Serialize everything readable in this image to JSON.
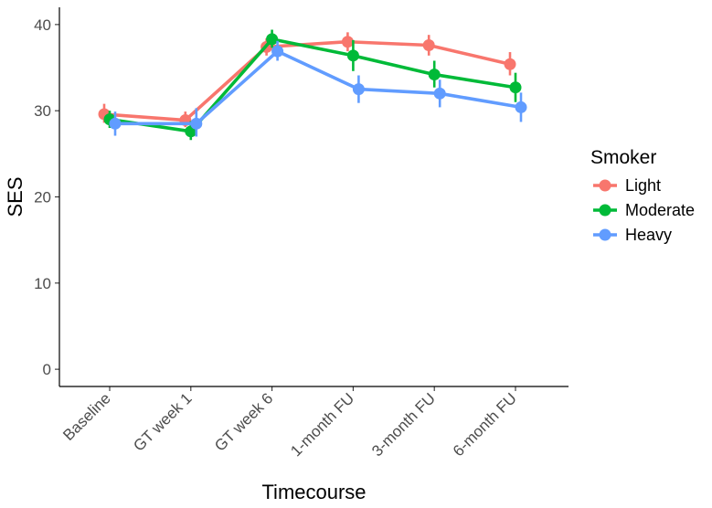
{
  "chart_data": {
    "type": "line",
    "xlabel": "Timecourse",
    "ylabel": "SES",
    "categories": [
      "Baseline",
      "GT week 1",
      "GT week 6",
      "1-month FU",
      "3-month FU",
      "6-month FU"
    ],
    "ylim": [
      -2,
      42
    ],
    "yticks": [
      0,
      10,
      20,
      30,
      40
    ],
    "grid": false,
    "legend": {
      "title": "Smoker",
      "position": "right"
    },
    "series": [
      {
        "name": "Light",
        "color": "#F8766D",
        "values": [
          29.6,
          28.9,
          37.4,
          38.0,
          37.6,
          35.4
        ],
        "err_low": [
          28.6,
          28.1,
          36.4,
          36.9,
          36.4,
          34.1
        ],
        "err_high": [
          30.8,
          29.9,
          38.4,
          39.1,
          38.8,
          36.8
        ]
      },
      {
        "name": "Moderate",
        "color": "#00BA38",
        "values": [
          29.0,
          27.6,
          38.3,
          36.4,
          34.2,
          32.7
        ],
        "err_low": [
          28.0,
          26.6,
          37.3,
          34.6,
          32.7,
          31.0
        ],
        "err_high": [
          30.0,
          28.8,
          39.4,
          38.2,
          35.8,
          34.4
        ]
      },
      {
        "name": "Heavy",
        "color": "#619CFF",
        "values": [
          28.5,
          28.5,
          36.9,
          32.5,
          32.0,
          30.4
        ],
        "err_low": [
          27.1,
          27.0,
          35.8,
          30.9,
          30.4,
          28.7
        ],
        "err_high": [
          29.9,
          30.3,
          38.1,
          34.1,
          33.6,
          32.1
        ]
      }
    ]
  }
}
